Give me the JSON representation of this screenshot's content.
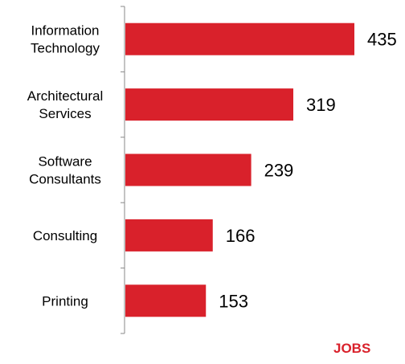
{
  "chart_data": {
    "type": "bar",
    "orientation": "horizontal",
    "categories": [
      [
        "Information",
        "Technology"
      ],
      [
        "Architectural",
        "Services"
      ],
      [
        "Software",
        "Consultants"
      ],
      [
        "Consulting"
      ],
      [
        "Printing"
      ]
    ],
    "values": [
      435,
      319,
      239,
      166,
      153
    ],
    "xlim": [
      0,
      435
    ],
    "bar_color": "#d9212b",
    "grid": false,
    "legend": "none"
  },
  "footer": {
    "label": "JOBS"
  }
}
